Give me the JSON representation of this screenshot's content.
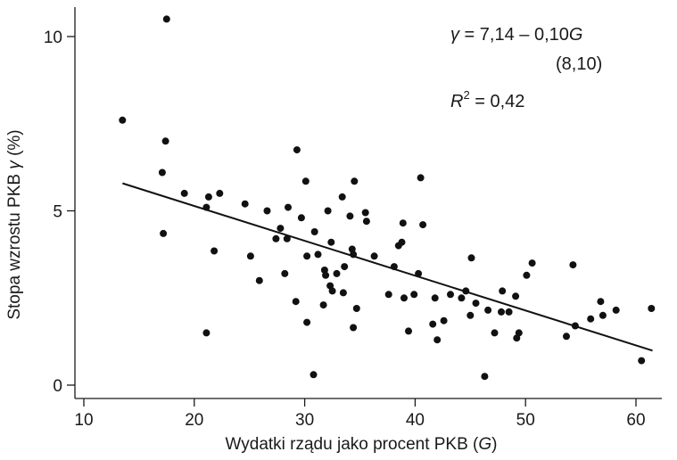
{
  "chart_data": {
    "type": "scatter",
    "xlabel": {
      "main": "Wydatki rządu jako procent PKB (",
      "var": "G",
      "end": ")"
    },
    "ylabel": {
      "main": "Stopa wzrostu PKB ",
      "var": "γ",
      "end": " (%)"
    },
    "xlim": [
      10,
      63
    ],
    "ylim": [
      -0.15,
      10.8
    ],
    "xticks": [
      10,
      20,
      30,
      40,
      50,
      60
    ],
    "yticks": [
      0,
      5,
      10
    ],
    "xtick_labels": [
      "10",
      "20",
      "30",
      "40",
      "50",
      "60"
    ],
    "ytick_labels": [
      "0",
      "5",
      "10"
    ],
    "grid": false,
    "regression": {
      "intercept": 7.14,
      "slope": -0.1,
      "x_range": [
        13.5,
        61.5
      ]
    },
    "annotations": {
      "equation_lhs": "γ",
      "equation_rhs": " = 7,14 – 0,10",
      "equation_var": "G",
      "std_error": "(8,10)",
      "r2_var": "R",
      "r2_sup": "2",
      "r2_rhs": " = 0,42"
    },
    "points": [
      [
        13.5,
        7.6
      ],
      [
        17.1,
        6.1
      ],
      [
        17.4,
        7.0
      ],
      [
        17.2,
        4.35
      ],
      [
        17.5,
        10.5
      ],
      [
        19.1,
        5.5
      ],
      [
        21.1,
        5.1
      ],
      [
        21.3,
        5.4
      ],
      [
        21.1,
        1.5
      ],
      [
        21.8,
        3.85
      ],
      [
        22.3,
        5.5
      ],
      [
        24.6,
        5.2
      ],
      [
        25.1,
        3.7
      ],
      [
        25.9,
        3.0
      ],
      [
        26.6,
        5.0
      ],
      [
        27.4,
        4.2
      ],
      [
        27.8,
        4.5
      ],
      [
        28.2,
        3.2
      ],
      [
        28.4,
        4.2
      ],
      [
        28.5,
        5.1
      ],
      [
        29.2,
        2.4
      ],
      [
        29.3,
        6.75
      ],
      [
        29.7,
        4.8
      ],
      [
        30.1,
        5.85
      ],
      [
        30.2,
        3.7
      ],
      [
        30.2,
        1.8
      ],
      [
        30.8,
        0.3
      ],
      [
        30.9,
        4.4
      ],
      [
        31.2,
        3.75
      ],
      [
        31.7,
        2.3
      ],
      [
        31.8,
        3.3
      ],
      [
        31.9,
        3.15
      ],
      [
        32.1,
        5.0
      ],
      [
        32.3,
        2.85
      ],
      [
        32.4,
        4.1
      ],
      [
        32.5,
        2.7
      ],
      [
        32.9,
        3.2
      ],
      [
        33.4,
        5.4
      ],
      [
        33.5,
        2.65
      ],
      [
        33.6,
        3.4
      ],
      [
        34.1,
        4.85
      ],
      [
        34.3,
        3.9
      ],
      [
        34.4,
        3.75
      ],
      [
        34.4,
        1.65
      ],
      [
        34.5,
        5.85
      ],
      [
        34.7,
        2.2
      ],
      [
        35.5,
        4.95
      ],
      [
        35.6,
        4.7
      ],
      [
        36.3,
        3.7
      ],
      [
        37.6,
        2.6
      ],
      [
        38.1,
        3.4
      ],
      [
        38.5,
        4.0
      ],
      [
        38.8,
        4.1
      ],
      [
        38.9,
        4.65
      ],
      [
        39.0,
        2.5
      ],
      [
        39.4,
        1.55
      ],
      [
        39.9,
        2.6
      ],
      [
        40.3,
        3.2
      ],
      [
        40.5,
        5.95
      ],
      [
        40.7,
        4.6
      ],
      [
        41.6,
        1.75
      ],
      [
        41.8,
        2.5
      ],
      [
        42.0,
        1.3
      ],
      [
        42.6,
        1.85
      ],
      [
        43.2,
        2.6
      ],
      [
        44.2,
        2.5
      ],
      [
        44.6,
        2.7
      ],
      [
        45.0,
        2.0
      ],
      [
        45.1,
        3.65
      ],
      [
        45.5,
        2.35
      ],
      [
        46.3,
        0.25
      ],
      [
        46.6,
        2.15
      ],
      [
        47.2,
        1.5
      ],
      [
        47.8,
        2.1
      ],
      [
        47.9,
        2.7
      ],
      [
        48.5,
        2.1
      ],
      [
        49.1,
        2.55
      ],
      [
        49.2,
        1.35
      ],
      [
        49.4,
        1.5
      ],
      [
        50.1,
        3.15
      ],
      [
        50.6,
        3.5
      ],
      [
        53.7,
        1.4
      ],
      [
        54.3,
        3.45
      ],
      [
        54.5,
        1.7
      ],
      [
        55.9,
        1.9
      ],
      [
        56.8,
        2.4
      ],
      [
        57.0,
        2.0
      ],
      [
        58.2,
        2.15
      ],
      [
        60.5,
        0.7
      ],
      [
        61.4,
        2.2
      ]
    ]
  }
}
